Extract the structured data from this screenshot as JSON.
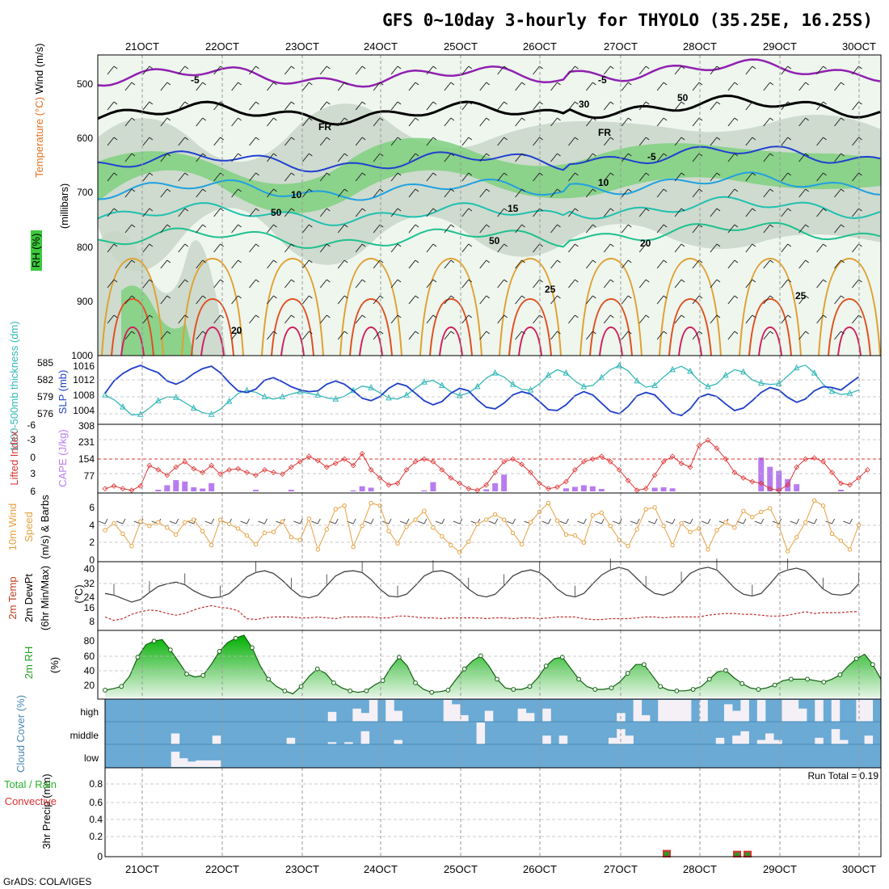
{
  "title": "GFS 0~10day 3-hourly for THYOLO (35.25E, 16.25S)",
  "footer": "GrADS: COLA/IGES",
  "run_total": "Run Total = 0.19",
  "colors": {
    "grid": "#aaaaaa",
    "rh_green": "#22c022",
    "rh_light": "#e6f2e6",
    "cloud_blue": "#6aaad5",
    "cape": "#b87cf0",
    "li": "#dd3333",
    "wind": "#e8a040",
    "slp": "#1f3fc8",
    "thick": "#33b8b8",
    "rain": "#e03030"
  },
  "chart_data": [
    {
      "type": "heatmap",
      "name": "Upper-air cross section",
      "ylabel": "(millibars)",
      "side_labels": [
        "RH (%)",
        "Temperature (°C)",
        "Wind (m/s)"
      ],
      "yticks": [
        "500",
        "600",
        "700",
        "800",
        "900",
        "1000"
      ],
      "contour_labels": [
        "-5",
        "-5",
        "FR",
        "FR",
        "-5",
        "10",
        "10",
        "15",
        "20",
        "25",
        "20",
        "50",
        "50",
        "30",
        "50",
        "25"
      ]
    },
    {
      "type": "line",
      "name": "Thickness and SLP",
      "ylabel_left": "1000-500mb thickness (dm)",
      "ylabel_right": "SLP (mb)",
      "yticks_left": [
        "585",
        "582",
        "579",
        "576"
      ],
      "yticks_right": [
        "1016",
        "1012",
        "1008",
        "1004"
      ],
      "series": [
        {
          "name": "SLP",
          "values": [
            1008.6,
            1011.6,
            1013.4,
            1014.6,
            1015.4,
            1014.4,
            1013.6,
            1011.6,
            1010.8,
            1011.8,
            1013.4,
            1014.6,
            1015.2,
            1013.6,
            1011.2,
            1009.2,
            1008.8,
            1009.6,
            1011.8,
            1012.4,
            1011.4,
            1010.2,
            1009.4,
            1009.0,
            1009.2,
            1010.8,
            1011.6,
            1010.8,
            1009.2,
            1007.4,
            1006.8,
            1007.8,
            1009.8,
            1011.0,
            1010.4,
            1008.6,
            1006.8,
            1005.8,
            1006.6,
            1008.6,
            1009.8,
            1009.2,
            1007.0,
            1005.2,
            1004.8,
            1006.2,
            1008.2,
            1009.0,
            1008.4,
            1006.6,
            1004.6,
            1004.4,
            1005.8,
            1008.0,
            1009.0,
            1008.2,
            1006.2,
            1004.2,
            1003.6,
            1005.4,
            1008.0,
            1008.8,
            1008.2,
            1006.0,
            1003.8,
            1003.2,
            1004.8,
            1007.6,
            1008.4,
            1007.8,
            1006.0,
            1004.4,
            1005.0,
            1006.8,
            1008.8,
            1010.0,
            1009.4,
            1007.6,
            1006.4,
            1007.2,
            1009.2,
            1010.2,
            1010.0,
            1009.4,
            1011.0,
            1012.6
          ]
        },
        {
          "name": "Thickness",
          "values": [
            579.3,
            578.5,
            577.2,
            575.8,
            575.9,
            577.0,
            578.3,
            579.0,
            578.9,
            578.0,
            577.0,
            576.2,
            575.9,
            576.8,
            578.2,
            579.6,
            580.1,
            579.8,
            579.0,
            578.6,
            579.0,
            579.5,
            579.9,
            579.6,
            579.3,
            578.8,
            578.6,
            579.1,
            580.1,
            580.9,
            580.6,
            579.7,
            578.8,
            578.6,
            579.3,
            580.5,
            581.6,
            581.9,
            581.0,
            579.9,
            579.2,
            579.7,
            580.8,
            582.3,
            583.2,
            582.5,
            581.2,
            580.3,
            580.2,
            581.3,
            582.8,
            583.8,
            583.2,
            581.8,
            580.8,
            581.0,
            582.4,
            583.8,
            584.5,
            583.6,
            581.8,
            580.7,
            581.0,
            582.5,
            583.8,
            584.4,
            583.5,
            581.8,
            580.8,
            581.3,
            582.8,
            583.8,
            583.4,
            582.0,
            581.4,
            581.2,
            581.3,
            582.7,
            584.1,
            584.6,
            583.2,
            581.2,
            580.0,
            579.4,
            579.6,
            580.2
          ]
        }
      ]
    },
    {
      "type": "bar",
      "name": "Lifted Index and CAPE",
      "ylabel_left": "Lifted Index",
      "ylabel_right": "CAPE (J/kg)",
      "yticks_left": [
        "-6",
        "-3",
        "0",
        "3",
        "6"
      ],
      "yticks_right": [
        "308",
        "231",
        "154",
        "77"
      ],
      "cape_values": [
        0,
        0,
        0,
        0,
        0,
        0,
        8,
        30,
        55,
        48,
        20,
        14,
        40,
        0,
        0,
        0,
        0,
        8,
        0,
        0,
        0,
        8,
        0,
        0,
        0,
        0,
        0,
        0,
        5,
        25,
        18,
        0,
        0,
        0,
        0,
        0,
        5,
        45,
        0,
        0,
        0,
        0,
        0,
        10,
        40,
        82,
        0,
        0,
        0,
        0,
        0,
        0,
        15,
        22,
        30,
        25,
        12,
        0,
        0,
        0,
        0,
        0,
        18,
        20,
        15,
        0,
        0,
        0,
        0,
        0,
        0,
        0,
        0,
        0,
        165,
        120,
        100,
        60,
        35,
        0,
        0,
        0,
        0,
        8,
        0,
        0,
        0
      ],
      "series": [
        {
          "name": "Lifted Index",
          "values": [
            5.5,
            5.0,
            5.5,
            5.8,
            5.0,
            1.2,
            2.0,
            3.0,
            1.5,
            0.5,
            1.8,
            2.5,
            1.2,
            2.8,
            2.0,
            1.8,
            2.5,
            3.0,
            2.0,
            2.5,
            2.8,
            1.5,
            0.5,
            -0.5,
            0.3,
            1.5,
            0.8,
            0.0,
            1.2,
            -1.0,
            2.0,
            3.5,
            4.8,
            4.5,
            2.0,
            0.5,
            0.0,
            0.5,
            2.0,
            3.5,
            4.5,
            5.5,
            5.8,
            4.8,
            2.5,
            0.5,
            0.0,
            1.0,
            2.5,
            4.5,
            5.5,
            5.2,
            4.2,
            2.0,
            0.5,
            0.0,
            -0.5,
            0.5,
            2.0,
            4.0,
            5.8,
            5.5,
            3.0,
            0.5,
            -0.5,
            0.8,
            1.5,
            -2.5,
            -3.5,
            -2.0,
            0.0,
            2.5,
            3.5,
            4.2,
            4.5,
            5.5,
            5.8,
            4.8,
            1.5,
            0.0,
            -0.2,
            0.5,
            2.5,
            4.5,
            4.8,
            3.5,
            2.0
          ]
        }
      ]
    },
    {
      "type": "line",
      "name": "10m Wind",
      "ylabel": "10m Wind Speed (m/s) & Barbs",
      "yticks": [
        "6",
        "4",
        "2",
        "0"
      ],
      "series": [
        {
          "name": "Wind speed",
          "values": [
            3.4,
            4.2,
            3.0,
            1.6,
            4.4,
            3.9,
            4.3,
            3.7,
            2.9,
            4.3,
            4.6,
            3.3,
            1.7,
            4.6,
            4.1,
            3.6,
            2.8,
            1.8,
            3.1,
            3.2,
            4.4,
            2.6,
            2.3,
            4.7,
            1.2,
            3.5,
            5.8,
            6.2,
            1.5,
            3.9,
            6.5,
            6.2,
            3.3,
            1.9,
            3.8,
            4.6,
            5.6,
            3.7,
            2.7,
            1.7,
            0.9,
            2.1,
            4.1,
            4.6,
            5.2,
            4.6,
            3.1,
            1.8,
            4.3,
            5.5,
            6.5,
            4.5,
            2.9,
            2.8,
            2.0,
            5.1,
            5.4,
            3.9,
            2.3,
            1.6,
            3.5,
            5.8,
            6.0,
            3.9,
            1.7,
            4.2,
            3.2,
            3.6,
            1.2,
            3.4,
            4.3,
            3.7,
            5.6,
            4.9,
            5.5,
            5.9,
            3.9,
            1.0,
            2.6,
            4.3,
            6.8,
            6.2,
            3.0,
            2.2,
            1.2,
            4.0
          ]
        }
      ]
    },
    {
      "type": "area",
      "name": "2m Temp",
      "ylabel": "2m Temp 2m DewPt (6hr Min/Max) (°C)",
      "yticks": [
        "40",
        "32",
        "24",
        "16",
        "8"
      ],
      "series": [
        {
          "name": "2m Temp",
          "values": [
            25.5,
            24.5,
            22.5,
            20.5,
            22,
            26,
            29.5,
            31,
            32,
            30.5,
            27,
            24.5,
            23,
            23.5,
            25.5,
            30,
            35,
            37.5,
            38.5,
            37,
            33,
            28,
            24,
            23,
            24.5,
            30,
            35.5,
            38,
            38.5,
            37.5,
            33.5,
            28,
            24,
            23.5,
            25,
            30,
            35.5,
            38,
            38.5,
            37,
            33,
            28,
            24.5,
            23.5,
            25,
            30,
            35.5,
            38,
            39,
            37.5,
            33.5,
            28,
            24.5,
            23.5,
            25.5,
            31,
            36,
            39,
            40.5,
            39,
            34,
            29,
            25.5,
            24.5,
            26.5,
            31.5,
            37,
            39.5,
            40.5,
            39,
            34,
            28.5,
            25,
            24,
            25.5,
            31,
            37,
            39,
            40,
            38.5,
            33.5,
            28,
            25,
            24.5,
            25.5,
            31
          ]
        },
        {
          "name": "2m DewPt",
          "values": [
            12,
            10,
            11,
            13.5,
            15,
            16,
            15.5,
            14,
            13,
            14,
            16,
            17.5,
            18.5,
            17.5,
            17,
            15.5,
            11,
            10.5,
            11.5,
            12,
            12,
            12,
            11.5,
            11.5,
            12,
            11.5,
            11,
            12,
            12,
            12,
            12,
            11.5,
            11.5,
            12.5,
            12.5,
            12,
            11.5,
            11.5,
            11,
            11.5,
            11.5,
            11.5,
            11.5,
            11,
            11.5,
            11.5,
            11,
            11.5,
            11.5,
            11,
            11.5,
            12,
            12,
            12,
            11,
            10.5,
            10.5,
            11,
            11,
            11,
            11.5,
            12,
            12,
            11.5,
            12,
            12,
            12,
            12,
            13,
            13.5,
            14,
            14,
            13.5,
            13.5,
            13,
            12.5,
            12.5,
            13,
            14,
            15,
            14,
            14.5,
            14.5,
            14.5,
            15,
            15
          ]
        }
      ]
    },
    {
      "type": "area",
      "name": "2m RH",
      "ylabel": "2m RH (%)",
      "yticks": [
        "80",
        "60",
        "40",
        "20"
      ],
      "series": [
        {
          "name": "2m RH",
          "values": [
            15,
            17,
            20,
            34,
            60,
            77,
            82,
            84,
            70,
            54,
            37,
            33,
            35,
            50,
            68,
            80,
            86,
            90,
            73,
            48,
            30,
            20,
            14,
            10,
            20,
            34,
            44,
            38,
            25,
            18,
            14,
            12,
            14,
            22,
            28,
            46,
            60,
            48,
            25,
            16,
            12,
            13,
            15,
            30,
            44,
            55,
            62,
            48,
            30,
            18,
            16,
            16,
            20,
            32,
            48,
            58,
            60,
            45,
            30,
            20,
            16,
            16,
            18,
            26,
            38,
            50,
            50,
            35,
            20,
            15,
            14,
            14,
            16,
            20,
            30,
            40,
            42,
            32,
            24,
            18,
            16,
            18,
            22,
            28,
            30,
            30,
            30,
            28,
            26,
            30,
            36,
            48,
            58,
            64,
            50,
            30
          ]
        }
      ]
    },
    {
      "type": "bar",
      "name": "Cloud Cover",
      "ylabel": "Cloud Cover (%)",
      "ylevels": [
        "high",
        "middle",
        "low"
      ],
      "high": [
        0,
        0,
        0,
        0,
        0,
        0,
        0,
        0,
        0,
        0,
        0,
        0,
        0,
        0,
        0,
        0,
        0,
        0,
        0,
        0,
        0,
        0,
        0,
        0,
        0,
        0,
        0,
        45,
        0,
        0,
        60,
        40,
        100,
        0,
        100,
        50,
        0,
        0,
        0,
        0,
        0,
        100,
        80,
        30,
        0,
        0,
        50,
        0,
        0,
        0,
        60,
        40,
        0,
        60,
        0,
        0,
        0,
        0,
        0,
        0,
        0,
        0,
        40,
        0,
        100,
        30,
        0,
        100,
        100,
        100,
        100,
        0,
        100,
        0,
        0,
        80,
        50,
        100,
        0,
        100,
        0,
        0,
        100,
        100,
        60,
        0,
        100,
        0,
        100,
        0,
        0,
        100,
        100,
        0
      ],
      "middle": [
        0,
        0,
        0,
        0,
        0,
        0,
        0,
        0,
        50,
        0,
        0,
        0,
        0,
        40,
        0,
        0,
        0,
        0,
        0,
        0,
        0,
        0,
        30,
        0,
        0,
        0,
        0,
        10,
        0,
        10,
        0,
        60,
        0,
        0,
        0,
        20,
        0,
        0,
        0,
        0,
        0,
        0,
        0,
        0,
        0,
        100,
        0,
        0,
        0,
        0,
        0,
        0,
        0,
        40,
        0,
        40,
        0,
        0,
        0,
        0,
        0,
        30,
        70,
        40,
        0,
        0,
        0,
        0,
        0,
        0,
        0,
        0,
        0,
        0,
        30,
        0,
        40,
        60,
        0,
        20,
        50,
        20,
        0,
        0,
        0,
        0,
        30,
        0,
        70,
        20,
        0,
        0,
        40,
        0,
        0,
        0
      ],
      "low": [
        0,
        0,
        0,
        0,
        0,
        0,
        0,
        0,
        70,
        40,
        25,
        30,
        30,
        30,
        0,
        0,
        0,
        0,
        0,
        0,
        0,
        0,
        0,
        0,
        0,
        0,
        0,
        0,
        0,
        0,
        0,
        0,
        0,
        0,
        0,
        0,
        0,
        0,
        0,
        0,
        0,
        0,
        0,
        0,
        0,
        0,
        0,
        0,
        0,
        0,
        0,
        0,
        0,
        0,
        0,
        0,
        0,
        0,
        0,
        0,
        0,
        0,
        0,
        0,
        0,
        0,
        0,
        0,
        0,
        0,
        0,
        0,
        0,
        0,
        0,
        0,
        0,
        0,
        0,
        0,
        0,
        0,
        0,
        0,
        0,
        0,
        0,
        0,
        0,
        0,
        0,
        0,
        0,
        0,
        0,
        0
      ]
    },
    {
      "type": "bar",
      "name": "3hr Precip",
      "ylabel": "3hr Precip (mm)",
      "legend": [
        "Total / Rain",
        "Convective"
      ],
      "yticks": [
        "0.8",
        "0.6",
        "0.4",
        "0.2",
        "0"
      ],
      "values": [
        {
          "x": "27OCT",
          "value": 0.07
        },
        {
          "x": "28OCT",
          "value": 0.06
        },
        {
          "x": "28OCT",
          "value": 0.06
        }
      ]
    }
  ],
  "dates": [
    "21OCT",
    "22OCT",
    "23OCT",
    "24OCT",
    "25OCT",
    "26OCT",
    "27OCT",
    "28OCT",
    "29OCT",
    "30OCT"
  ]
}
